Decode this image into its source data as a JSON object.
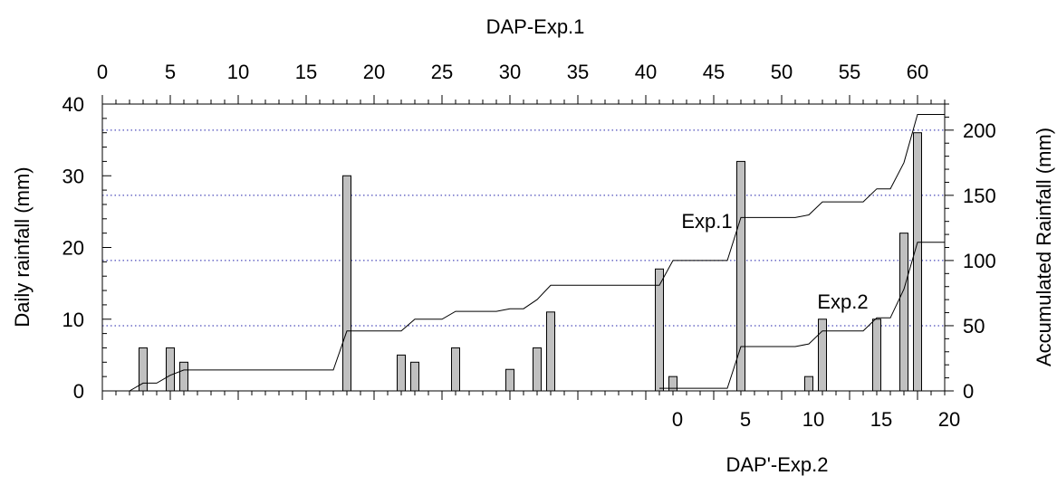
{
  "chart_data": {
    "type": "bar",
    "title": "",
    "top_axis_label": "DAP-Exp.1",
    "bottom_axis_label": "DAP'-Exp.2",
    "left_axis_label": "Daily rainfall (mm)",
    "right_axis_label": "Accumulated Rainfall (mm)",
    "x_range": [
      0,
      62
    ],
    "top_ticks": [
      0,
      5,
      10,
      15,
      20,
      25,
      30,
      35,
      40,
      45,
      50,
      55,
      60
    ],
    "bottom_ticks": [
      {
        "label": "0",
        "at": 43
      },
      {
        "label": "5",
        "at": 48
      },
      {
        "label": "10",
        "at": 53
      },
      {
        "label": "15",
        "at": 58
      },
      {
        "label": "20",
        "at": 63
      }
    ],
    "ylim_left": [
      0,
      40
    ],
    "yticks_left": [
      0,
      10,
      20,
      30,
      40
    ],
    "ylim_right": [
      0,
      220
    ],
    "yticks_right": [
      0,
      50,
      100,
      150,
      200
    ],
    "grid": "dotted horizontal lines at right-axis 50, 100, 150, 200",
    "bar_color": "#c0c0c0",
    "bars": {
      "x": [
        3,
        5,
        6,
        18,
        22,
        23,
        26,
        30,
        32,
        33,
        41,
        42,
        47,
        52,
        53,
        57,
        59,
        60
      ],
      "values": [
        6,
        6,
        4,
        30,
        5,
        4,
        6,
        3,
        6,
        11,
        17,
        2,
        32,
        2,
        10,
        10,
        22,
        36
      ]
    },
    "series": [
      {
        "name": "Exp.1",
        "x": [
          2,
          3,
          4,
          5,
          6,
          17,
          18,
          22,
          23,
          25,
          26,
          29,
          30,
          31,
          32,
          33,
          41,
          42,
          46,
          47,
          51,
          52,
          53,
          56,
          57,
          58,
          59,
          60,
          62
        ],
        "y": [
          0,
          6,
          6,
          12,
          16,
          16,
          46,
          46,
          55,
          55,
          61,
          61,
          63,
          63,
          70,
          81,
          81,
          100,
          100,
          133,
          133,
          135,
          145,
          145,
          155,
          155,
          175,
          212,
          212
        ]
      },
      {
        "name": "Exp.2",
        "x": [
          41,
          46,
          47,
          51,
          52,
          53,
          56,
          57,
          58,
          59,
          60,
          62
        ],
        "y": [
          2,
          2,
          34,
          34,
          36,
          46,
          46,
          56,
          56,
          78,
          114,
          114
        ]
      }
    ],
    "annotations": [
      {
        "text": "Exp.1",
        "x": 44.5,
        "y_right": 125
      },
      {
        "text": "Exp.2",
        "x": 54.5,
        "y_right": 63
      }
    ]
  }
}
